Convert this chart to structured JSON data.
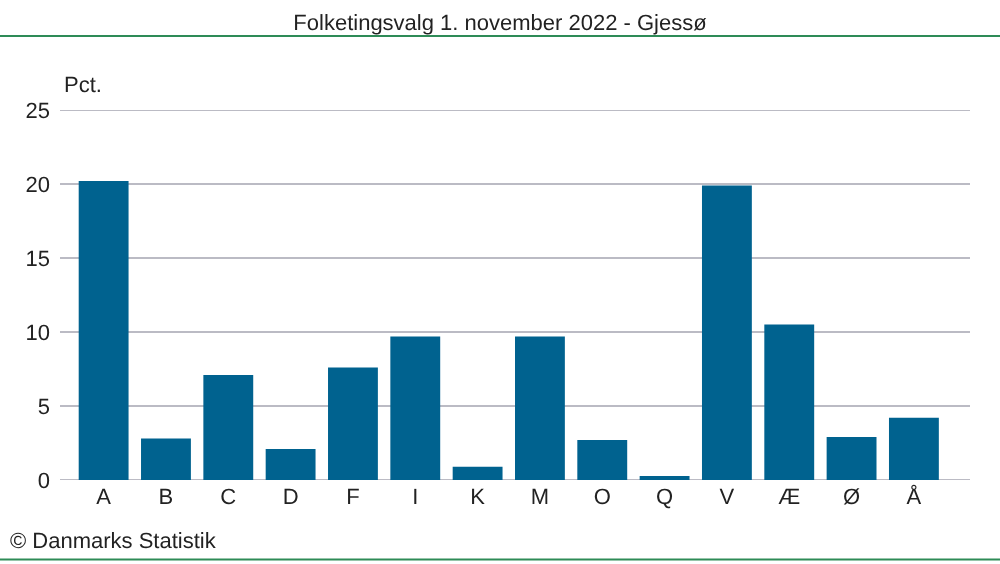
{
  "chart_data": {
    "type": "bar",
    "title": "Folketingsvalg 1. november 2022 - Gjessø",
    "ylabel": "Pct.",
    "categories": [
      "A",
      "B",
      "C",
      "D",
      "F",
      "I",
      "K",
      "M",
      "O",
      "Q",
      "V",
      "Æ",
      "Ø",
      "Å"
    ],
    "values": [
      20.2,
      2.8,
      7.1,
      2.1,
      7.6,
      9.7,
      0.9,
      9.7,
      2.7,
      0.2,
      19.9,
      10.5,
      2.9,
      4.2
    ],
    "color": "#00628f",
    "ylim": [
      0,
      25
    ],
    "yticks": [
      0,
      5,
      10,
      15,
      20,
      25
    ],
    "grid": "y",
    "annotations": [
      "© Danmarks Statistik"
    ]
  }
}
